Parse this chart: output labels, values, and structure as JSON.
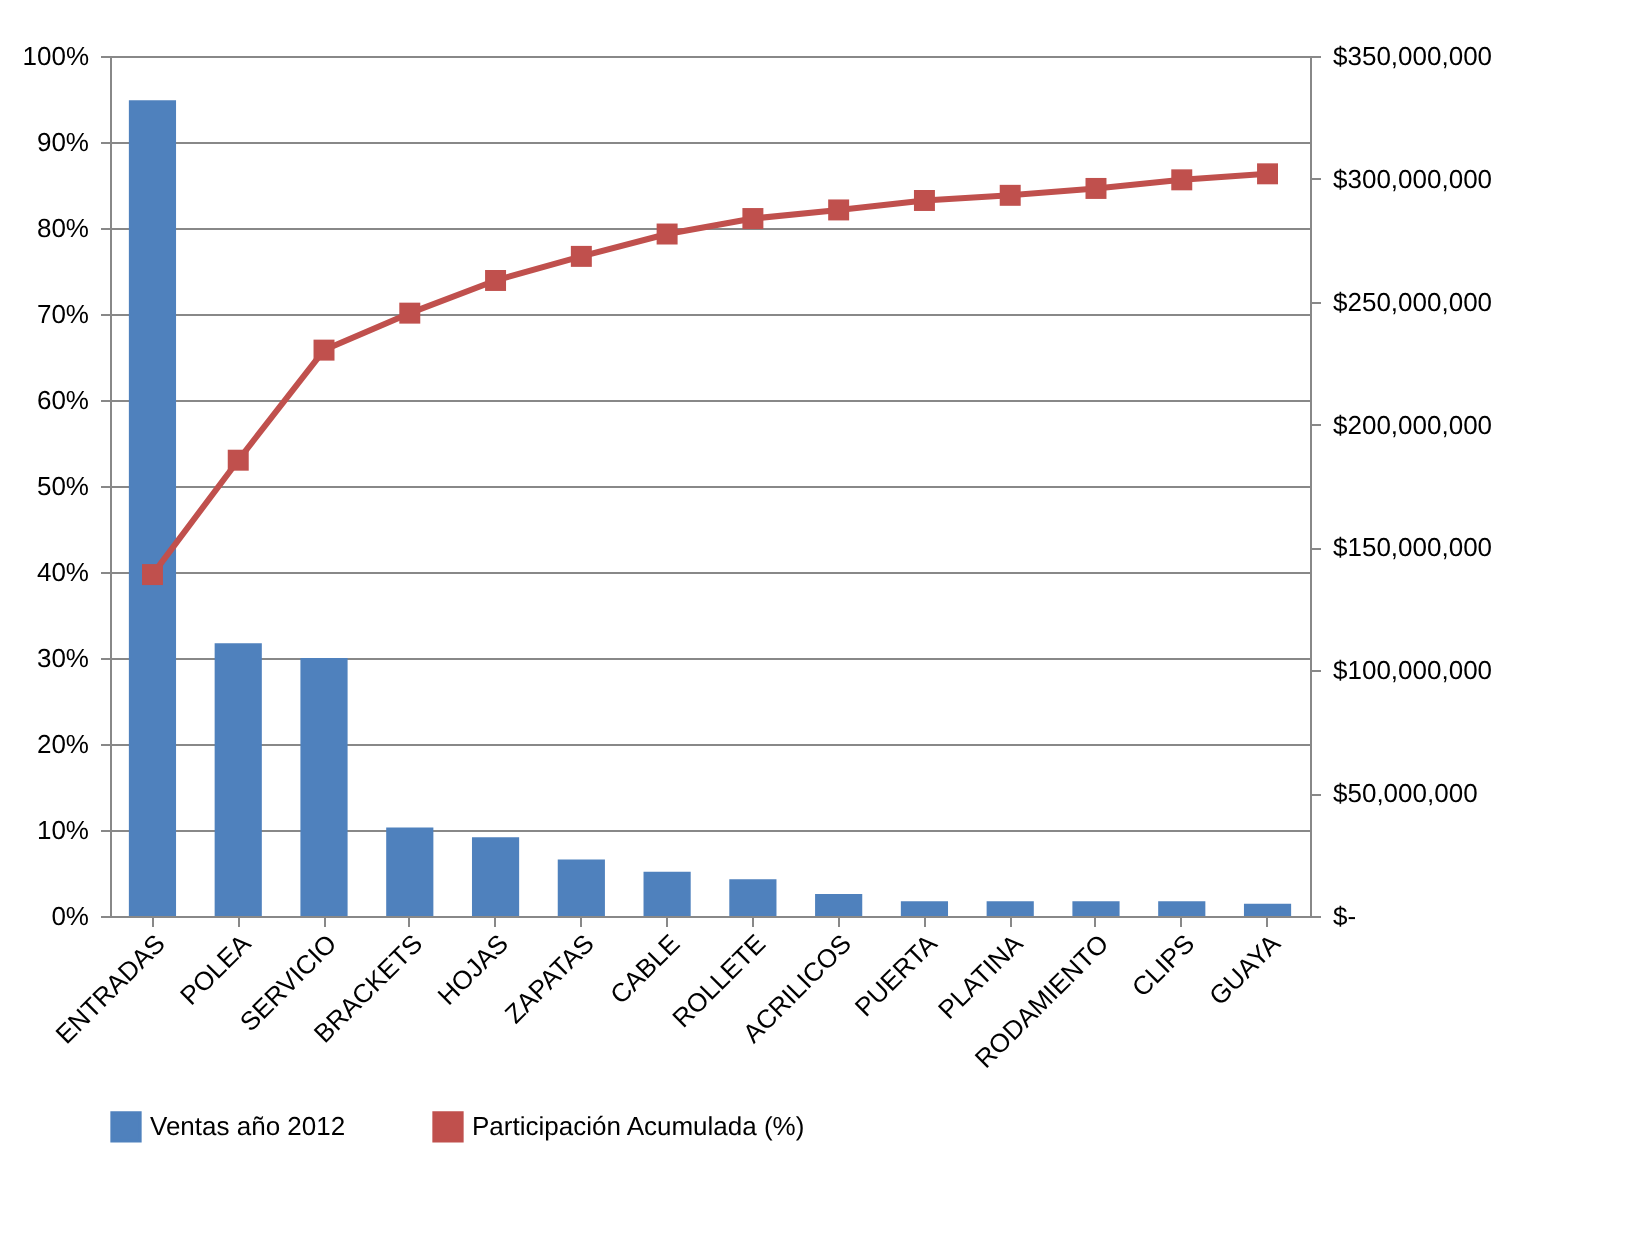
{
  "chart_data": {
    "type": "bar",
    "categories": [
      "ENTRADAS",
      "POLEA",
      "SERVICIO",
      "BRACKETS",
      "HOJAS",
      "ZAPATAS",
      "CABLE",
      "ROLLETE",
      "ACRILICOS",
      "PUERTA",
      "PLATINA",
      "RODAMIENTO",
      "CLIPS",
      "GUAYA"
    ],
    "series": [
      {
        "name": "Ventas año 2012",
        "axis": "y2",
        "color": "#4f81bd",
        "values": [
          332000000,
          111000000,
          105000000,
          36000000,
          32000000,
          23000000,
          18000000,
          15000000,
          9000000,
          6000000,
          6000000,
          6000000,
          6000000,
          5000000
        ]
      },
      {
        "name": "Participación Acumulada (%)",
        "type": "line",
        "axis": "y",
        "color": "#c0504d",
        "marker": "square",
        "values": [
          39.7,
          53.0,
          65.8,
          70.1,
          73.9,
          76.7,
          79.3,
          81.1,
          82.1,
          83.2,
          83.8,
          84.6,
          85.6,
          86.3
        ]
      }
    ],
    "ylim": [
      0,
      100
    ],
    "yticks": [
      {
        "value": 0,
        "label": "0%"
      },
      {
        "value": 10,
        "label": "10%"
      },
      {
        "value": 20,
        "label": "20%"
      },
      {
        "value": 30,
        "label": "30%"
      },
      {
        "value": 40,
        "label": "40%"
      },
      {
        "value": 50,
        "label": "50%"
      },
      {
        "value": 60,
        "label": "60%"
      },
      {
        "value": 70,
        "label": "70%"
      },
      {
        "value": 80,
        "label": "80%"
      },
      {
        "value": 90,
        "label": "90%"
      },
      {
        "value": 100,
        "label": "100%"
      }
    ],
    "y2lim": [
      0,
      350000000
    ],
    "y2ticks": [
      {
        "value": 0,
        "label": "$-"
      },
      {
        "value": 50000000,
        "label": "$50,000,000"
      },
      {
        "value": 100000000,
        "label": "$100,000,000"
      },
      {
        "value": 150000000,
        "label": "$150,000,000"
      },
      {
        "value": 200000000,
        "label": "$200,000,000"
      },
      {
        "value": 250000000,
        "label": "$250,000,000"
      },
      {
        "value": 300000000,
        "label": "$300,000,000"
      },
      {
        "value": 350000000,
        "label": "$350,000,000"
      }
    ],
    "grid": "y",
    "legend": "bottom"
  }
}
